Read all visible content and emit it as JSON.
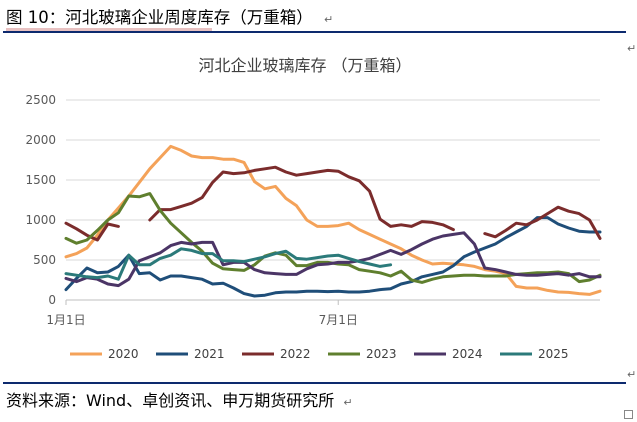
{
  "figure": {
    "title": "图 10：河北玻璃企业周度库存（万重箱）",
    "source": "资料来源：Wind、卓创资讯、申万期货研究所",
    "para_mark": "↵"
  },
  "colors": {
    "rule": "#0d2a6e",
    "grid": "#d9d9d9",
    "axis": "#bfbfbf"
  },
  "chart_data": {
    "type": "line",
    "title": "河北企业玻璃库存  （万重箱）",
    "xlabel": "",
    "ylabel": "",
    "x_domain": [
      1,
      52
    ],
    "x_ticks": [
      {
        "label": "1月1日",
        "week": 1
      },
      {
        "label": "7月1日",
        "week": 27
      }
    ],
    "y_ticks": [
      0,
      500,
      1000,
      1500,
      2000,
      2500
    ],
    "ylim": [
      0,
      2500
    ],
    "grid": true,
    "legend_position": "bottom",
    "series": [
      {
        "name": "2020",
        "color": "#f4a259",
        "values": [
          540,
          580,
          650,
          810,
          1000,
          1150,
          1300,
          1470,
          1640,
          1780,
          1920,
          1870,
          1800,
          1780,
          1780,
          1760,
          1760,
          1720,
          1480,
          1390,
          1420,
          1270,
          1180,
          1000,
          920,
          920,
          930,
          960,
          880,
          820,
          760,
          700,
          640,
          560,
          500,
          450,
          460,
          450,
          440,
          420,
          380,
          360,
          330,
          170,
          150,
          150,
          120,
          100,
          95,
          80,
          70,
          110
        ]
      },
      {
        "name": "2021",
        "color": "#1f4e79",
        "values": [
          130,
          270,
          400,
          340,
          350,
          420,
          560,
          330,
          340,
          250,
          300,
          300,
          280,
          260,
          200,
          210,
          150,
          80,
          50,
          60,
          90,
          100,
          100,
          110,
          110,
          105,
          110,
          100,
          100,
          110,
          130,
          140,
          200,
          230,
          290,
          320,
          350,
          430,
          540,
          600,
          650,
          700,
          780,
          850,
          920,
          1030,
          1030,
          950,
          900,
          860,
          850,
          850
        ]
      },
      {
        "name": "2022",
        "color": "#7b2c2c",
        "values": [
          960,
          890,
          810,
          750,
          950,
          920,
          null,
          null,
          1000,
          1130,
          1130,
          1170,
          1210,
          1280,
          1470,
          1600,
          1580,
          1590,
          1620,
          1640,
          1660,
          1600,
          1560,
          1580,
          1600,
          1620,
          1610,
          1540,
          1490,
          1360,
          1010,
          920,
          940,
          920,
          980,
          970,
          940,
          880,
          null,
          null,
          830,
          790,
          870,
          960,
          940,
          1000,
          1080,
          1160,
          1110,
          1080,
          1000,
          770
        ]
      },
      {
        "name": "2023",
        "color": "#5f7f2e",
        "values": [
          770,
          710,
          750,
          870,
          1000,
          1090,
          1300,
          1290,
          1330,
          1120,
          960,
          840,
          720,
          610,
          460,
          390,
          380,
          370,
          440,
          550,
          590,
          560,
          430,
          430,
          470,
          470,
          450,
          440,
          380,
          360,
          340,
          300,
          360,
          250,
          220,
          260,
          290,
          300,
          310,
          310,
          300,
          300,
          300,
          320,
          330,
          340,
          340,
          350,
          330,
          230,
          250,
          310
        ]
      },
      {
        "name": "2024",
        "color": "#4b3566",
        "values": [
          270,
          230,
          280,
          260,
          200,
          180,
          260,
          490,
          540,
          590,
          680,
          720,
          700,
          720,
          720,
          440,
          470,
          470,
          380,
          340,
          330,
          320,
          320,
          390,
          440,
          450,
          470,
          470,
          490,
          520,
          570,
          620,
          570,
          630,
          700,
          760,
          800,
          820,
          840,
          700,
          400,
          380,
          350,
          320,
          310,
          310,
          320,
          330,
          310,
          330,
          290,
          290
        ]
      },
      {
        "name": "2025",
        "color": "#2b7a7a",
        "values": [
          330,
          310,
          290,
          280,
          300,
          260,
          560,
          440,
          440,
          520,
          560,
          640,
          620,
          580,
          580,
          490,
          490,
          480,
          510,
          540,
          580,
          610,
          520,
          510,
          530,
          550,
          560,
          520,
          480,
          450,
          420,
          440,
          null,
          null,
          null,
          null,
          null,
          null,
          null,
          null,
          null,
          null,
          null,
          null,
          null,
          null,
          null,
          null,
          null,
          null,
          null,
          null
        ]
      }
    ]
  }
}
